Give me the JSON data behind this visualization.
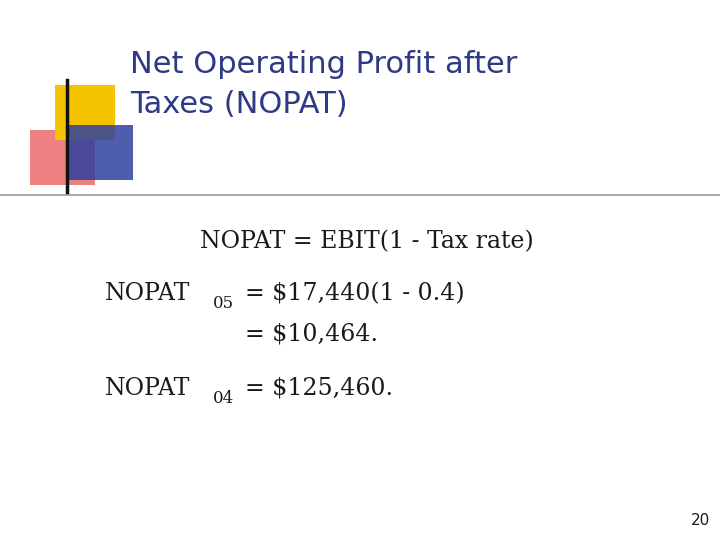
{
  "title_line1": "Net Operating Profit after",
  "title_line2": "Taxes (NOPAT)",
  "title_color": "#2E3A87",
  "body_color": "#1a1a1a",
  "formula": "NOPAT = EBIT(1 - Tax rate)",
  "nopat05_eq1": "= $17,440(1 - 0.4)",
  "nopat05_eq2": "= $10,464.",
  "nopat04_eq": "= $125,460.",
  "page_number": "20",
  "bg_color": "#FFFFFF",
  "decoration_yellow": "#F5C400",
  "decoration_red": "#E85555",
  "decoration_blue": "#3040A0",
  "line_color": "#999999",
  "title_fontsize": 22,
  "body_fontsize": 17
}
